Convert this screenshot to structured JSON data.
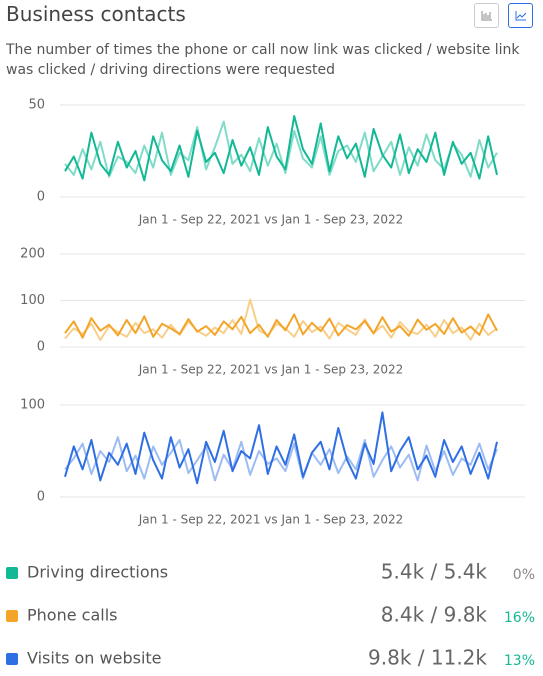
{
  "header": {
    "title": "Business contacts",
    "description": "The number of times the phone or call now link was clicked / website link was clicked / driving directions were requested"
  },
  "chart_data": [
    {
      "type": "line",
      "caption": "Jan 1 - Sep 22, 2021 vs Jan 1 - Sep 23, 2022",
      "ylim": [
        0,
        50
      ],
      "yticks": [
        0,
        50
      ],
      "grid": true,
      "series": [
        {
          "color": "#7fdcc8",
          "values": [
            18,
            12,
            26,
            15,
            30,
            11,
            22,
            19,
            13,
            28,
            16,
            35,
            12,
            24,
            20,
            38,
            15,
            27,
            41,
            18,
            23,
            14,
            32,
            17,
            29,
            13,
            36,
            21,
            16,
            33,
            12,
            25,
            28,
            19,
            35,
            14,
            22,
            30,
            12,
            27,
            17,
            34,
            20,
            15,
            29,
            23,
            11,
            31,
            16,
            24
          ]
        },
        {
          "color": "#13b894",
          "values": [
            14,
            22,
            10,
            35,
            18,
            12,
            30,
            16,
            25,
            9,
            33,
            20,
            14,
            28,
            11,
            36,
            19,
            24,
            13,
            31,
            17,
            27,
            12,
            38,
            22,
            15,
            44,
            26,
            18,
            40,
            14,
            33,
            21,
            29,
            11,
            37,
            23,
            16,
            34,
            13,
            26,
            19,
            35,
            12,
            30,
            18,
            24,
            10,
            33,
            12
          ]
        }
      ]
    },
    {
      "type": "line",
      "caption": "Jan 1 - Sep 22, 2021 vs Jan 1 - Sep 23, 2022",
      "ylim": [
        0,
        200
      ],
      "yticks": [
        0,
        100,
        200
      ],
      "grid": true,
      "series": [
        {
          "color": "#f8cf8a",
          "values": [
            18,
            40,
            28,
            50,
            15,
            45,
            32,
            22,
            52,
            30,
            38,
            20,
            48,
            26,
            55,
            35,
            24,
            42,
            30,
            58,
            28,
            102,
            36,
            25,
            50,
            40,
            22,
            56,
            32,
            44,
            18,
            52,
            38,
            26,
            60,
            30,
            46,
            20,
            54,
            34,
            28,
            48,
            22,
            58,
            30,
            42,
            16,
            50,
            26,
            40
          ]
        },
        {
          "color": "#f3a52a",
          "values": [
            30,
            55,
            20,
            62,
            35,
            48,
            25,
            58,
            30,
            66,
            22,
            50,
            40,
            28,
            60,
            33,
            45,
            26,
            55,
            38,
            65,
            30,
            48,
            22,
            58,
            36,
            70,
            27,
            52,
            34,
            61,
            25,
            47,
            38,
            56,
            29,
            64,
            33,
            45,
            24,
            59,
            37,
            50,
            28,
            62,
            31,
            44,
            26,
            70,
            35
          ]
        }
      ]
    },
    {
      "type": "line",
      "caption": "Jan 1 - Sep 22, 2021 vs Jan 1 - Sep 23, 2022",
      "ylim": [
        0,
        100
      ],
      "yticks": [
        0,
        100
      ],
      "grid": true,
      "series": [
        {
          "color": "#9dbcf3",
          "values": [
            30,
            42,
            58,
            25,
            50,
            38,
            65,
            28,
            45,
            20,
            55,
            35,
            48,
            62,
            26,
            40,
            55,
            18,
            46,
            30,
            60,
            24,
            50,
            36,
            42,
            28,
            58,
            20,
            48,
            35,
            52,
            26,
            44,
            30,
            62,
            22,
            40,
            55,
            32,
            46,
            18,
            56,
            28,
            50,
            24,
            42,
            35,
            58,
            30,
            52
          ]
        },
        {
          "color": "#2f6fe4",
          "values": [
            22,
            55,
            30,
            62,
            18,
            48,
            35,
            58,
            25,
            70,
            40,
            20,
            65,
            32,
            52,
            15,
            60,
            38,
            72,
            28,
            50,
            42,
            78,
            25,
            55,
            35,
            68,
            22,
            48,
            60,
            30,
            75,
            40,
            20,
            58,
            36,
            92,
            28,
            50,
            65,
            30,
            45,
            22,
            62,
            38,
            55,
            25,
            48,
            20,
            60
          ]
        }
      ]
    }
  ],
  "summary": [
    {
      "label": "Driving directions",
      "color": "#13b894",
      "value_label": "5.4k / 5.4k",
      "change": "0%",
      "change_color": "#888888"
    },
    {
      "label": "Phone calls",
      "color": "#f3a52a",
      "value_label": "8.4k / 9.8k",
      "change": "16%",
      "change_color": "#13b894"
    },
    {
      "label": "Visits on website",
      "color": "#2f6fe4",
      "value_label": "9.8k / 11.2k",
      "change": "13%",
      "change_color": "#13b894"
    }
  ]
}
